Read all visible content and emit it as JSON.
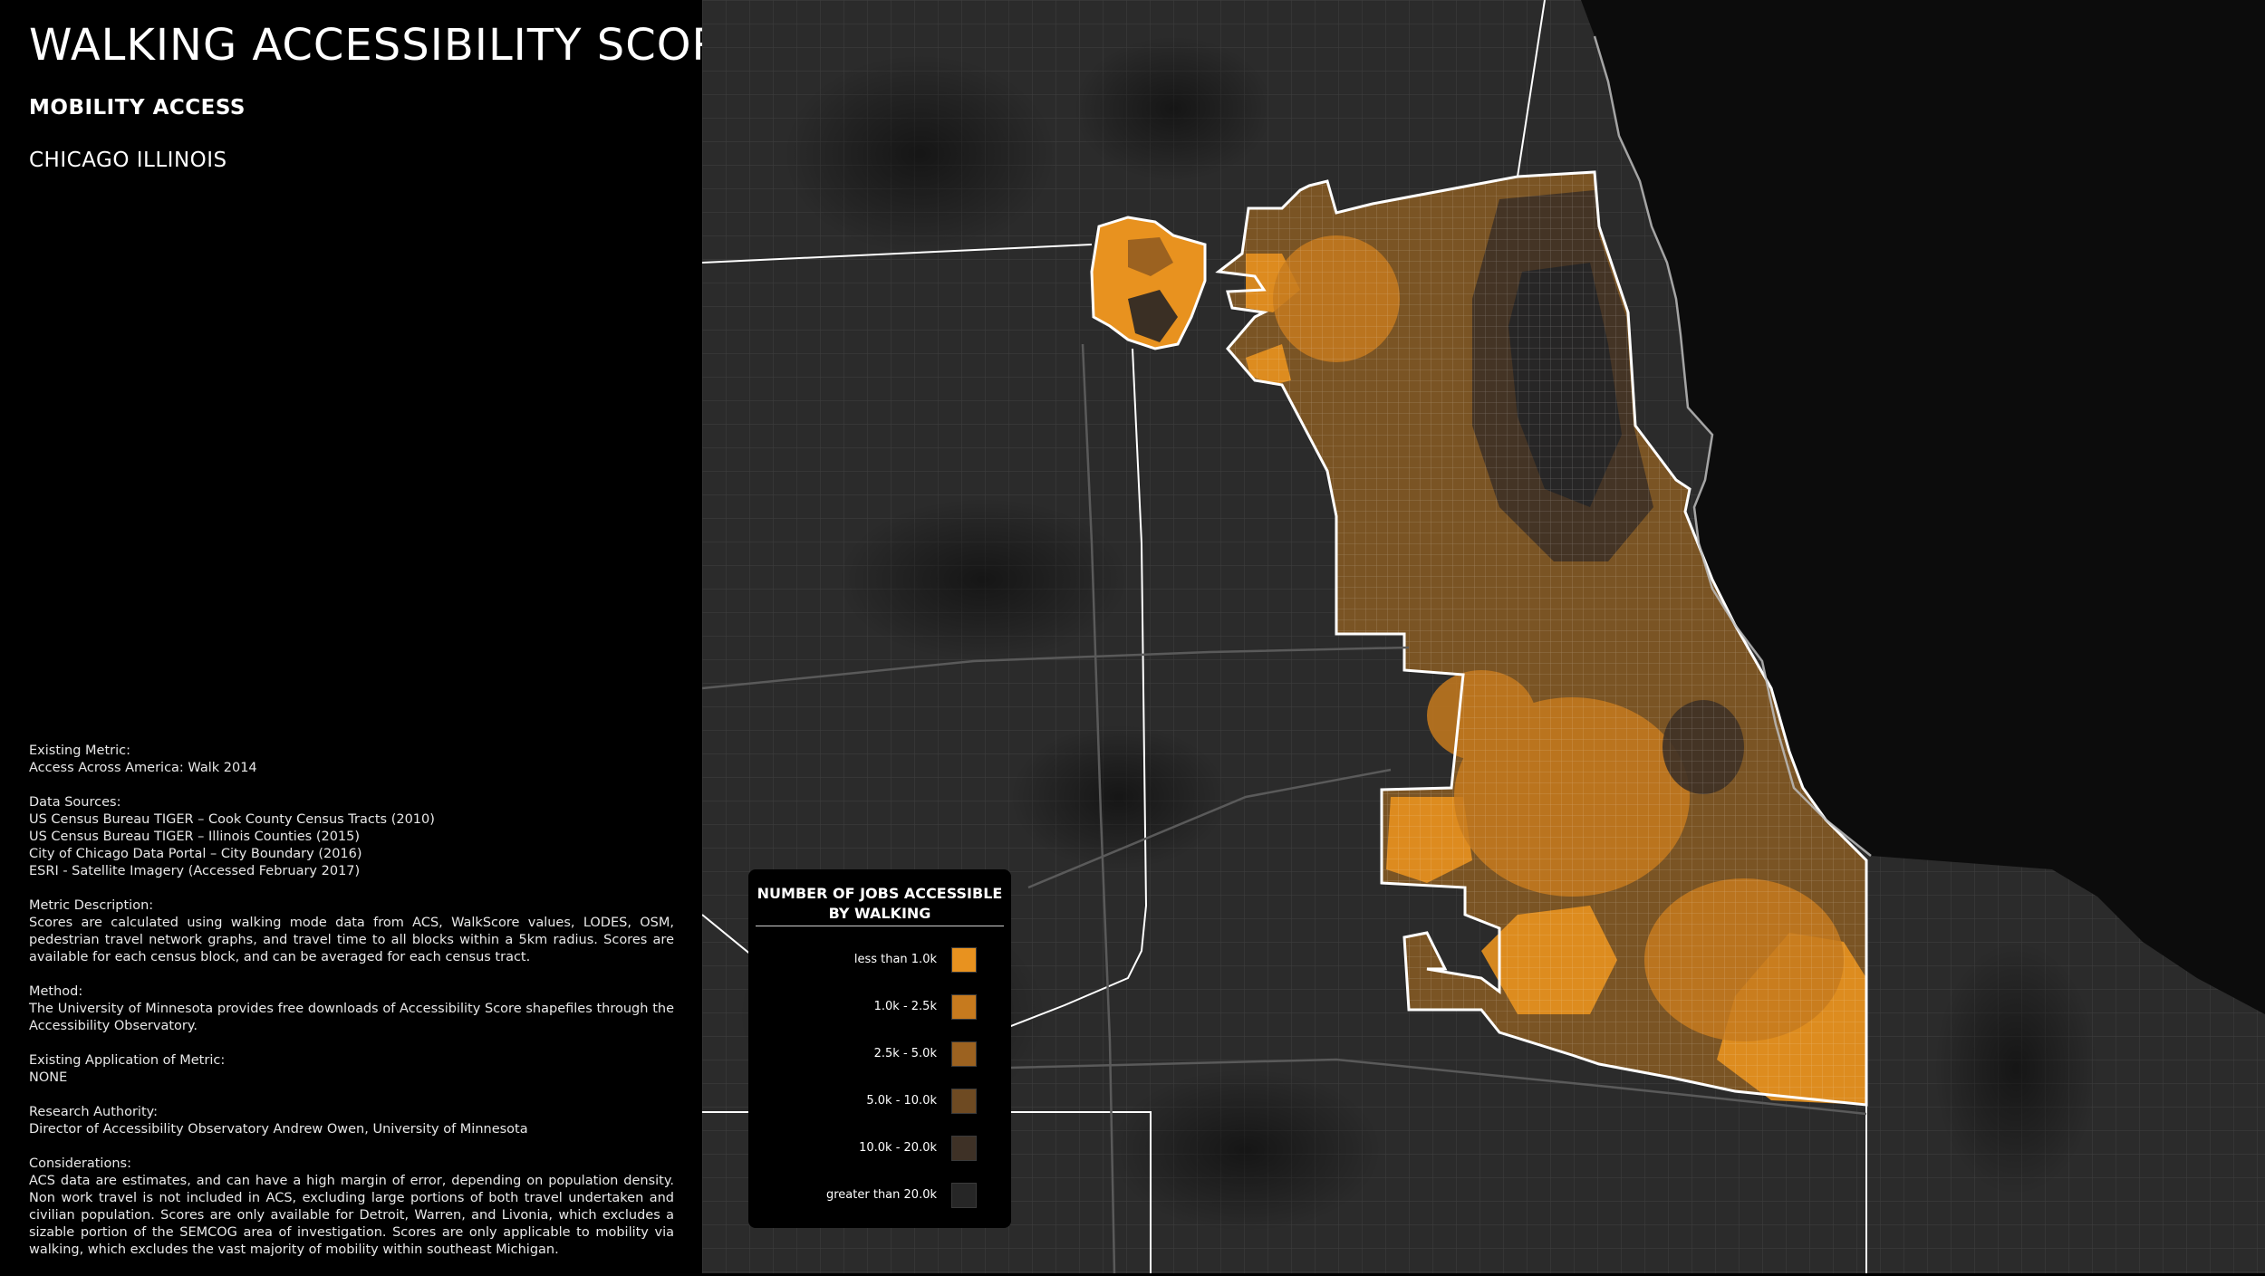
{
  "header": {
    "title": "WALKING ACCESSIBILITY SCORE",
    "subtitle": "MOBILITY ACCESS",
    "location": "CHICAGO ILLINOIS"
  },
  "metadata": [
    {
      "label": "Existing Metric:",
      "lines": [
        "Access Across America: Walk 2014"
      ]
    },
    {
      "label": "Data Sources:",
      "lines": [
        "US Census Bureau TIGER – Cook County Census Tracts (2010)",
        "US Census Bureau TIGER – Illinois Counties (2015)",
        "City of Chicago Data Portal – City Boundary (2016)",
        "ESRI - Satellite Imagery (Accessed February 2017)"
      ]
    },
    {
      "label": "Metric Description:",
      "text": "Scores are calculated using walking mode data from ACS, WalkScore values, LODES, OSM, pedestrian travel network graphs, and travel time to all blocks within a 5km radius.  Scores are available for each census block, and can be averaged for each census tract."
    },
    {
      "label": "Method:",
      "text": "The University of Minnesota provides free downloads of Accessibility Score shapefiles through the Accessibility Observatory."
    },
    {
      "label": "Existing Application of Metric:",
      "lines": [
        "NONE"
      ]
    },
    {
      "label": "Research Authority:",
      "lines": [
        "Director of Accessibility Observatory Andrew Owen, University of Minnesota"
      ]
    },
    {
      "label": "Considerations:",
      "text": "ACS data are estimates, and can have a high margin of error, depending on population density.  Non work travel is not included in ACS, excluding large portions of both travel undertaken and civilian population. Scores are only available for Detroit, Warren, and Livonia, which excludes a sizable portion of the SEMCOG area of investigation. Scores are only applicable to mobility via walking, which excludes the vast majority of mobility within southeast Michigan."
    }
  ],
  "legend": {
    "title_line1": "NUMBER OF JOBS ACCESSIBLE",
    "title_line2": "BY WALKING",
    "items": [
      {
        "label": "less than 1.0k",
        "color": "#e8921f"
      },
      {
        "label": "1.0k - 2.5k",
        "color": "#c67a1e"
      },
      {
        "label": "2.5k - 5.0k",
        "color": "#9c6220"
      },
      {
        "label": "5.0k - 10.0k",
        "color": "#6e4a22"
      },
      {
        "label": "10.0k - 20.0k",
        "color": "#3e3126"
      },
      {
        "label": "greater than 20.0k",
        "color": "#262626"
      }
    ]
  },
  "map": {
    "background_color": "#2d2d2d",
    "lake_color": "#0c0c0c",
    "boundary_color": "#ffffff"
  }
}
